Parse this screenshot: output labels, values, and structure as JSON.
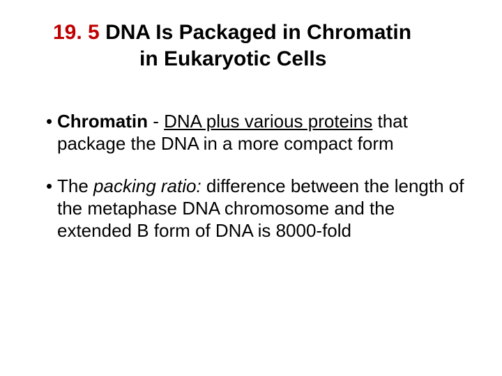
{
  "title": {
    "section_number": "19. 5",
    "line1_rest": " DNA Is Packaged in Chromatin",
    "line2": "in Eukaryotic Cells",
    "section_color": "#c00000",
    "title_color": "#000000",
    "title_fontsize": 30
  },
  "bullets": [
    {
      "parts": [
        {
          "text": "Chromatin",
          "bold": true
        },
        {
          "text": " - "
        },
        {
          "text": "DNA plus various proteins",
          "underline": true
        },
        {
          "text": " that package the DNA in a more compact form"
        }
      ]
    },
    {
      "parts": [
        {
          "text": "The "
        },
        {
          "text": "packing ratio:",
          "italic": true
        },
        {
          "text": " difference between the length of the metaphase DNA chromosome and the extended B form of DNA is 8000-fold"
        }
      ]
    }
  ],
  "style": {
    "body_fontsize": 26,
    "background_color": "#ffffff",
    "text_color": "#000000"
  }
}
